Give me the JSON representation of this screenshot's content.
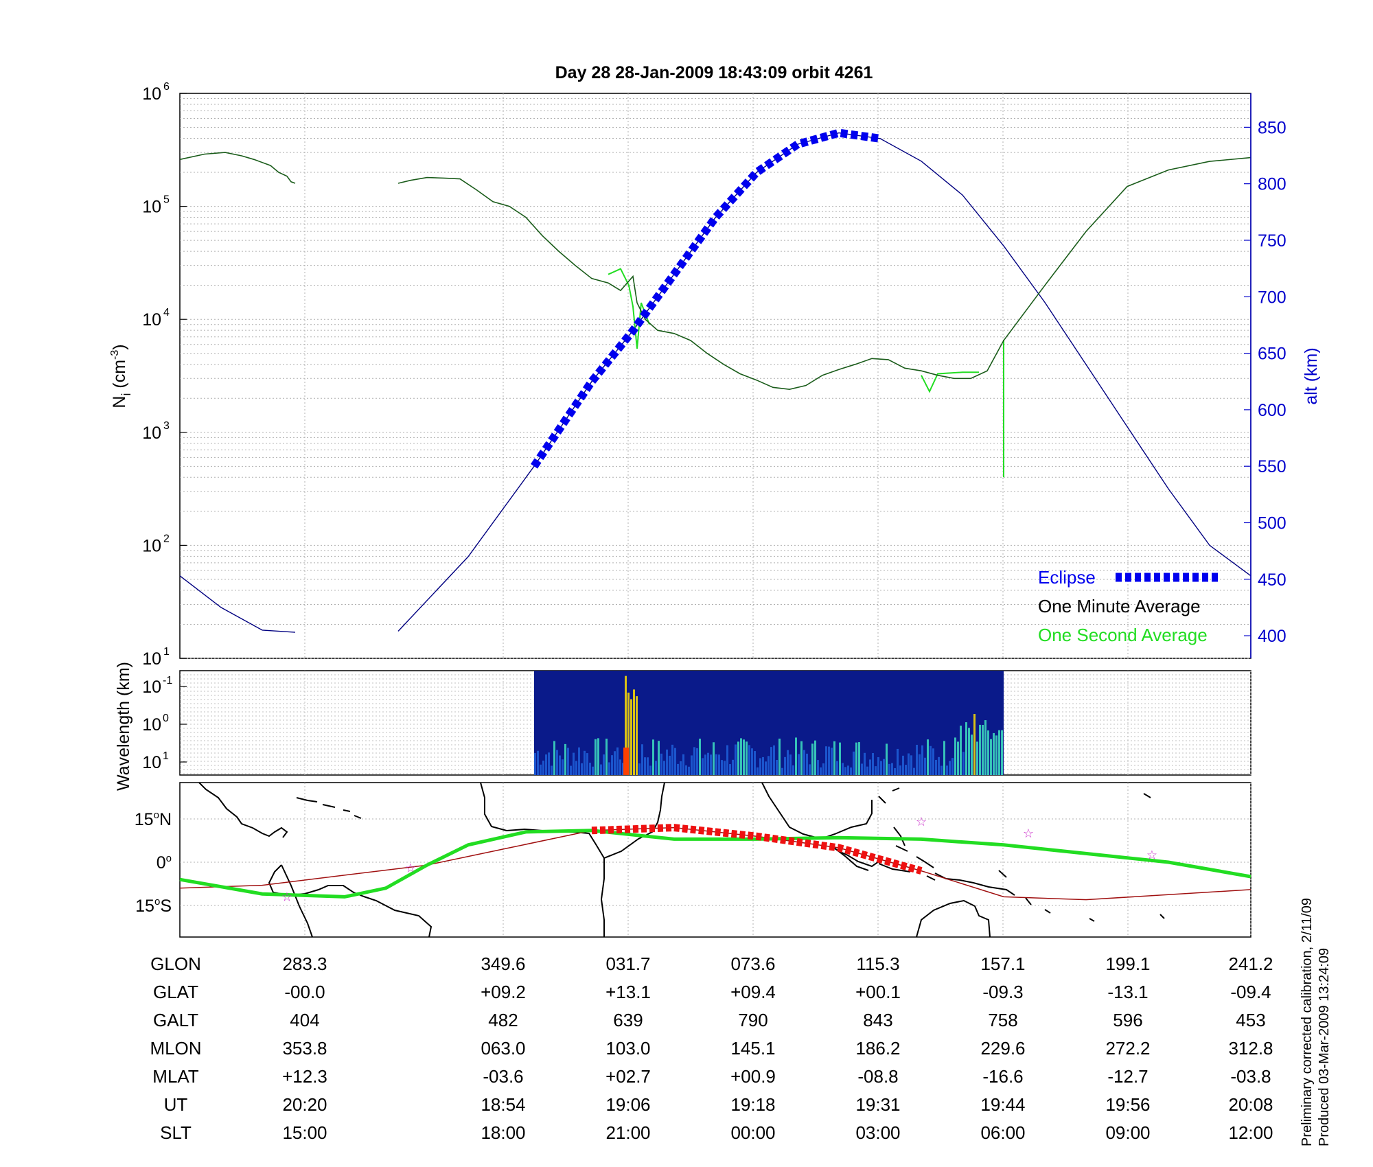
{
  "title": "Day 28  28-Jan-2009 18:43:09   orbit 4261",
  "colors": {
    "green": "#22dd22",
    "dark_green": "#1a5c1a",
    "blue": "#0000ee",
    "alt_line": "#000080",
    "track_red": "#a01010",
    "eclipse_red": "#ee1111",
    "star": "#cc33cc"
  },
  "chart_data": [
    {
      "type": "line",
      "name": "density-panel",
      "ylabel": "N_i (cm^-3)",
      "ylabel_main": "N",
      "ylabel_sub": "i",
      "ylabel_unit_base": " (cm",
      "ylabel_unit_exp": "-3",
      "ylabel_unit_end": ")",
      "yscale": "log",
      "ylim": [
        10,
        1000000
      ],
      "y_ticks": [
        {
          "base": "10",
          "exp": "1"
        },
        {
          "base": "10",
          "exp": "2"
        },
        {
          "base": "10",
          "exp": "3"
        },
        {
          "base": "10",
          "exp": "4"
        },
        {
          "base": "10",
          "exp": "5"
        },
        {
          "base": "10",
          "exp": "6"
        }
      ],
      "y2label": "alt (km)",
      "y2lim": [
        380,
        880
      ],
      "y2_ticks": [
        "400",
        "450",
        "500",
        "550",
        "600",
        "650",
        "700",
        "750",
        "800",
        "850"
      ],
      "x_ticks_ut": [
        "20:20",
        "18:54",
        "19:06",
        "19:18",
        "19:31",
        "19:44",
        "19:56",
        "20:08"
      ],
      "legend": [
        "Eclipse",
        "One Minute Average",
        "One Second Average"
      ],
      "legend_position": "bottom-right",
      "grid": true,
      "series": [
        {
          "name": "One Minute Average",
          "segments": [
            [
              [
                0,
                260000
              ],
              [
                0.03,
                290000
              ],
              [
                0.055,
                300000
              ],
              [
                0.075,
                280000
              ],
              [
                0.09,
                260000
              ],
              [
                0.11,
                230000
              ],
              [
                0.12,
                200000
              ],
              [
                0.13,
                185000
              ],
              [
                0.135,
                165000
              ],
              [
                0.14,
                160000
              ]
            ],
            [
              [
                0.265,
                160000
              ],
              [
                0.28,
                170000
              ],
              [
                0.3,
                180000
              ],
              [
                0.32,
                178000
              ],
              [
                0.34,
                175000
              ],
              [
                0.36,
                140000
              ],
              [
                0.38,
                110000
              ],
              [
                0.4,
                100000
              ],
              [
                0.42,
                80000
              ],
              [
                0.44,
                55000
              ],
              [
                0.46,
                40000
              ],
              [
                0.48,
                30000
              ],
              [
                0.5,
                23000
              ],
              [
                0.52,
                21000
              ],
              [
                0.535,
                18000
              ],
              [
                0.55,
                24000
              ],
              [
                0.555,
                14000
              ],
              [
                0.565,
                10000
              ],
              [
                0.58,
                8000
              ],
              [
                0.6,
                7500
              ],
              [
                0.62,
                6500
              ],
              [
                0.64,
                5000
              ],
              [
                0.66,
                4000
              ],
              [
                0.68,
                3300
              ],
              [
                0.7,
                2900
              ],
              [
                0.72,
                2500
              ],
              [
                0.74,
                2400
              ],
              [
                0.76,
                2600
              ],
              [
                0.78,
                3200
              ],
              [
                0.8,
                3600
              ],
              [
                0.82,
                4000
              ],
              [
                0.84,
                4500
              ],
              [
                0.86,
                4400
              ],
              [
                0.88,
                3700
              ],
              [
                0.9,
                3500
              ],
              [
                0.92,
                3200
              ],
              [
                0.94,
                3000
              ],
              [
                0.96,
                3000
              ],
              [
                0.98,
                3500
              ],
              [
                1.0,
                6500
              ],
              [
                1.05,
                20000
              ],
              [
                1.1,
                60000
              ],
              [
                1.15,
                150000
              ],
              [
                1.2,
                210000
              ],
              [
                1.25,
                250000
              ],
              [
                1.3,
                270000
              ]
            ]
          ]
        },
        {
          "name": "One Second Average",
          "segments": [
            [
              [
                0.52,
                25000
              ],
              [
                0.535,
                28000
              ],
              [
                0.545,
                20000
              ],
              [
                0.55,
                13000
              ],
              [
                0.555,
                5500
              ],
              [
                0.56,
                14000
              ],
              [
                0.57,
                9000
              ]
            ],
            [
              [
                0.9,
                3200
              ],
              [
                0.91,
                2300
              ],
              [
                0.92,
                3300
              ],
              [
                0.95,
                3400
              ],
              [
                0.97,
                3400
              ]
            ],
            [
              [
                1.0,
                6600
              ],
              [
                1.0,
                400
              ]
            ]
          ]
        },
        {
          "name": "Altitude",
          "axis": "y2",
          "segments": [
            [
              [
                0,
                453
              ],
              [
                0.05,
                425
              ],
              [
                0.1,
                405
              ],
              [
                0.14,
                403
              ]
            ],
            [
              [
                0.265,
                404
              ],
              [
                0.35,
                470
              ],
              [
                0.43,
                550
              ],
              [
                0.5,
                625
              ],
              [
                0.55,
                670
              ],
              [
                0.6,
                720
              ],
              [
                0.65,
                770
              ],
              [
                0.7,
                810
              ],
              [
                0.75,
                835
              ],
              [
                0.8,
                845
              ],
              [
                0.85,
                840
              ],
              [
                0.9,
                820
              ],
              [
                0.95,
                790
              ],
              [
                1.0,
                745
              ],
              [
                1.05,
                695
              ],
              [
                1.1,
                640
              ],
              [
                1.15,
                585
              ],
              [
                1.2,
                530
              ],
              [
                1.25,
                480
              ],
              [
                1.3,
                453
              ]
            ]
          ]
        },
        {
          "name": "Eclipse",
          "axis": "y2",
          "x_range": [
            0.43,
            0.89
          ]
        }
      ]
    },
    {
      "type": "heatmap",
      "name": "wavelength-spectrogram",
      "ylabel": "Wavelength (km)",
      "y_ticks": [
        {
          "base": "10",
          "exp": "-1"
        },
        {
          "base": "10",
          "exp": "0"
        },
        {
          "base": "10",
          "exp": "1"
        }
      ],
      "x_range": [
        0.43,
        1.0
      ]
    },
    {
      "type": "scatter",
      "name": "ground-track-map",
      "y_ticks": [
        {
          "deg": "15",
          "hemi": "N"
        },
        {
          "deg": "0",
          "hemi": ""
        },
        {
          "deg": "15",
          "hemi": "S"
        }
      ],
      "series": [
        {
          "name": "orbit track",
          "points": [
            [
              0,
              -9
            ],
            [
              0.1,
              -8
            ],
            [
              0.3,
              -1
            ],
            [
              0.4,
              5
            ],
            [
              0.5,
              11
            ],
            [
              0.6,
              12
            ],
            [
              0.7,
              9
            ],
            [
              0.8,
              5
            ],
            [
              0.9,
              -3
            ],
            [
              1.0,
              -12
            ],
            [
              1.1,
              -13
            ],
            [
              1.3,
              -9.5
            ]
          ]
        },
        {
          "name": "magnetic equator",
          "points": [
            [
              0,
              -6
            ],
            [
              0.1,
              -11
            ],
            [
              0.2,
              -12
            ],
            [
              0.25,
              -9
            ],
            [
              0.3,
              -1
            ],
            [
              0.35,
              6
            ],
            [
              0.42,
              10.5
            ],
            [
              0.5,
              11
            ],
            [
              0.6,
              8
            ],
            [
              0.7,
              8
            ],
            [
              0.8,
              8.5
            ],
            [
              0.9,
              8
            ],
            [
              1.0,
              6
            ],
            [
              1.1,
              3
            ],
            [
              1.2,
              0
            ],
            [
              1.3,
              -5
            ]
          ]
        },
        {
          "name": "eclipse track",
          "x_range": [
            0.43,
            0.89
          ]
        },
        {
          "name": "stars",
          "points": [
            [
              0.28,
              -2
            ],
            [
              0.9,
              14
            ],
            [
              1.03,
              10
            ],
            [
              1.18,
              2.5
            ],
            [
              0.13,
              -12
            ]
          ]
        }
      ]
    }
  ],
  "table": {
    "rows": [
      {
        "label": "GLON",
        "values": [
          "283.3",
          "349.6",
          "031.7",
          "073.6",
          "115.3",
          "157.1",
          "199.1",
          "241.2"
        ]
      },
      {
        "label": "GLAT",
        "values": [
          "-00.0",
          "+09.2",
          "+13.1",
          "+09.4",
          "+00.1",
          "-09.3",
          "-13.1",
          "-09.4"
        ]
      },
      {
        "label": "GALT",
        "values": [
          "404",
          "482",
          "639",
          "790",
          "843",
          "758",
          "596",
          "453"
        ]
      },
      {
        "label": "MLON",
        "values": [
          "353.8",
          "063.0",
          "103.0",
          "145.1",
          "186.2",
          "229.6",
          "272.2",
          "312.8"
        ]
      },
      {
        "label": "MLAT",
        "values": [
          "+12.3",
          "-03.6",
          "+02.7",
          "+00.9",
          "-08.8",
          "-16.6",
          "-12.7",
          "-03.8"
        ]
      },
      {
        "label": "UT",
        "values": [
          "20:20",
          "18:54",
          "19:06",
          "19:18",
          "19:31",
          "19:44",
          "19:56",
          "20:08"
        ]
      },
      {
        "label": "SLT",
        "values": [
          "15:00",
          "18:00",
          "21:00",
          "00:00",
          "03:00",
          "06:00",
          "09:00",
          "12:00"
        ]
      }
    ]
  },
  "footer": {
    "line1": "Preliminary corrected calibration, 2/11/09",
    "line2": "Produced 03-Mar-2009 13:24:09"
  }
}
